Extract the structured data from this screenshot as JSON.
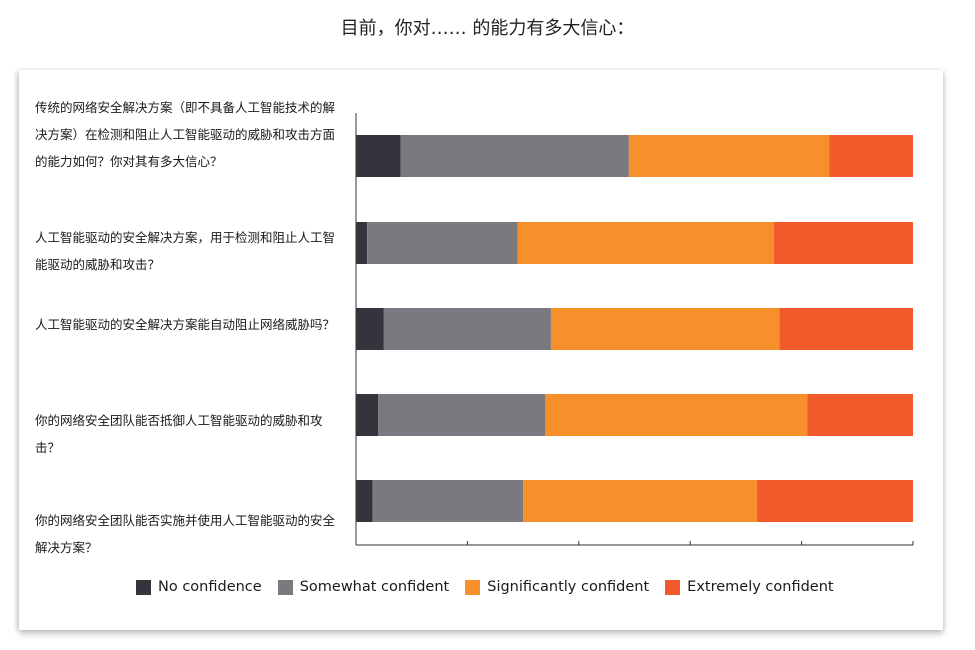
{
  "title": "目前，你对…… 的能力有多大信心：",
  "chart_data": {
    "type": "bar",
    "orientation": "horizontal",
    "stacked": true,
    "categories": [
      "传统的网络安全解决方案（即不具备人工智能技术的解决方案）在检测和阻止人工智能驱动的威胁和攻击方面的能力如何？你对其有多大信心？",
      "人工智能驱动的安全解决方案，用于检测和阻止人工智能驱动的威胁和攻击？",
      "人工智能驱动的安全解决方案能自动阻止网络威胁吗？",
      "你的网络安全团队能否抵御人工智能驱动的威胁和攻击？",
      "你的网络安全团队能否实施并使用人工智能驱动的安全解决方案？"
    ],
    "series": [
      {
        "name": "No confidence",
        "color": "#35343d",
        "values": [
          8,
          2,
          5,
          4,
          3
        ]
      },
      {
        "name": "Somewhat confident",
        "color": "#7b797f",
        "values": [
          41,
          27,
          30,
          30,
          27
        ]
      },
      {
        "name": "Significantly confident",
        "color": "#f7902b",
        "values": [
          36,
          46,
          41,
          47,
          42
        ]
      },
      {
        "name": "Extremely confident",
        "color": "#f15a2b",
        "values": [
          15,
          25,
          24,
          19,
          28
        ]
      }
    ],
    "xlim": [
      0,
      100
    ],
    "xticks": [
      0,
      20,
      40,
      60,
      80,
      100
    ],
    "grid": false,
    "legend_position": "bottom",
    "xlabel": "",
    "ylabel": ""
  }
}
